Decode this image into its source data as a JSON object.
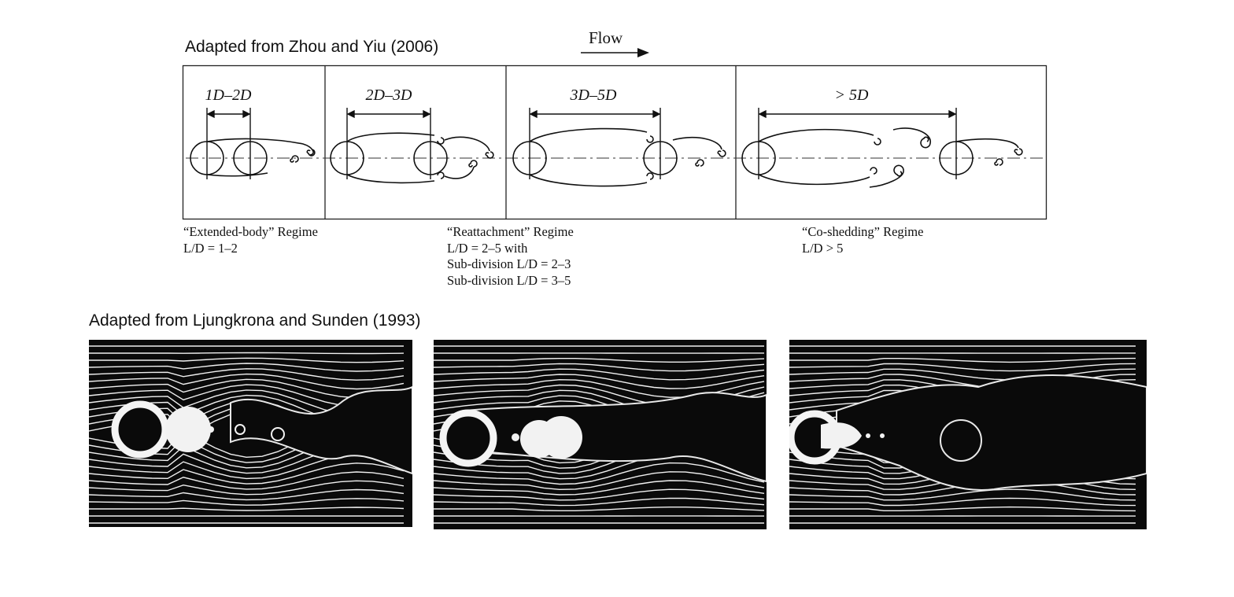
{
  "captions": {
    "top": "Adapted from Zhou and Yiu (2006)",
    "bottom": "Adapted from Ljungkrona and Sunden (1993)"
  },
  "flow": {
    "label": "Flow"
  },
  "panels": [
    {
      "spacing": "1D–2D"
    },
    {
      "spacing": "2D–3D"
    },
    {
      "spacing": "3D–5D"
    },
    {
      "spacing": "> 5D"
    }
  ],
  "regimes": [
    {
      "title": "“Extended-body” Regime",
      "lines": [
        "L/D = 1–2"
      ]
    },
    {
      "title": "“Reattachment” Regime",
      "lines": [
        "L/D = 2–5 with",
        "Sub-division L/D = 2–3",
        "Sub-division L/D = 3–5"
      ]
    },
    {
      "title": "“Co-shedding” Regime",
      "lines": [
        "L/D > 5"
      ]
    }
  ],
  "photos": [
    {
      "name": "extended-body"
    },
    {
      "name": "reattachment"
    },
    {
      "name": "co-shedding"
    }
  ]
}
